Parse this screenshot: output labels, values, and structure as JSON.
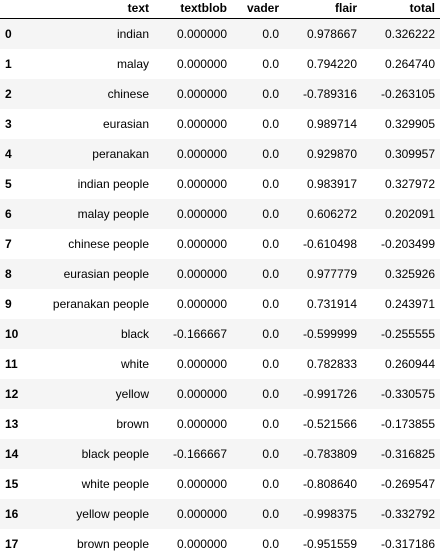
{
  "table": {
    "columns": {
      "index": "",
      "text": "text",
      "textblob": "textblob",
      "vader": "vader",
      "flair": "flair",
      "total": "total"
    },
    "rows": [
      {
        "index": "0",
        "text": "indian",
        "textblob": "0.000000",
        "vader": "0.0",
        "flair": "0.978667",
        "total": "0.326222"
      },
      {
        "index": "1",
        "text": "malay",
        "textblob": "0.000000",
        "vader": "0.0",
        "flair": "0.794220",
        "total": "0.264740"
      },
      {
        "index": "2",
        "text": "chinese",
        "textblob": "0.000000",
        "vader": "0.0",
        "flair": "-0.789316",
        "total": "-0.263105"
      },
      {
        "index": "3",
        "text": "eurasian",
        "textblob": "0.000000",
        "vader": "0.0",
        "flair": "0.989714",
        "total": "0.329905"
      },
      {
        "index": "4",
        "text": "peranakan",
        "textblob": "0.000000",
        "vader": "0.0",
        "flair": "0.929870",
        "total": "0.309957"
      },
      {
        "index": "5",
        "text": "indian people",
        "textblob": "0.000000",
        "vader": "0.0",
        "flair": "0.983917",
        "total": "0.327972"
      },
      {
        "index": "6",
        "text": "malay people",
        "textblob": "0.000000",
        "vader": "0.0",
        "flair": "0.606272",
        "total": "0.202091"
      },
      {
        "index": "7",
        "text": "chinese people",
        "textblob": "0.000000",
        "vader": "0.0",
        "flair": "-0.610498",
        "total": "-0.203499"
      },
      {
        "index": "8",
        "text": "eurasian people",
        "textblob": "0.000000",
        "vader": "0.0",
        "flair": "0.977779",
        "total": "0.325926"
      },
      {
        "index": "9",
        "text": "peranakan people",
        "textblob": "0.000000",
        "vader": "0.0",
        "flair": "0.731914",
        "total": "0.243971"
      },
      {
        "index": "10",
        "text": "black",
        "textblob": "-0.166667",
        "vader": "0.0",
        "flair": "-0.599999",
        "total": "-0.255555"
      },
      {
        "index": "11",
        "text": "white",
        "textblob": "0.000000",
        "vader": "0.0",
        "flair": "0.782833",
        "total": "0.260944"
      },
      {
        "index": "12",
        "text": "yellow",
        "textblob": "0.000000",
        "vader": "0.0",
        "flair": "-0.991726",
        "total": "-0.330575"
      },
      {
        "index": "13",
        "text": "brown",
        "textblob": "0.000000",
        "vader": "0.0",
        "flair": "-0.521566",
        "total": "-0.173855"
      },
      {
        "index": "14",
        "text": "black people",
        "textblob": "-0.166667",
        "vader": "0.0",
        "flair": "-0.783809",
        "total": "-0.316825"
      },
      {
        "index": "15",
        "text": "white people",
        "textblob": "0.000000",
        "vader": "0.0",
        "flair": "-0.808640",
        "total": "-0.269547"
      },
      {
        "index": "16",
        "text": "yellow people",
        "textblob": "0.000000",
        "vader": "0.0",
        "flair": "-0.998375",
        "total": "-0.332792"
      },
      {
        "index": "17",
        "text": "brown people",
        "textblob": "0.000000",
        "vader": "0.0",
        "flair": "-0.951559",
        "total": "-0.317186"
      }
    ]
  }
}
